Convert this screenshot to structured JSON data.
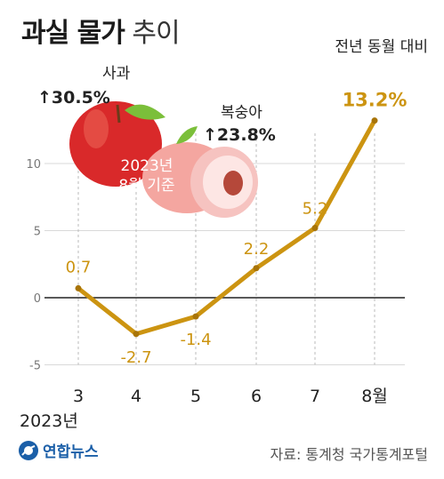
{
  "header": {
    "title_bold": "과실 물가",
    "title_light": "추이",
    "basis": "전년 동월 대비"
  },
  "footer": {
    "source": "자료: 통계청 국가통계포털",
    "agency": "연합뉴스"
  },
  "illustration": {
    "apple": {
      "name": "사과",
      "change": "↑30.5%"
    },
    "peach": {
      "name": "복숭아",
      "change": "↑23.8%"
    },
    "reference": [
      "2023년",
      "8월 기준"
    ]
  },
  "chart_data": {
    "type": "line",
    "categories": [
      "3",
      "4",
      "5",
      "6",
      "7",
      "8월"
    ],
    "x_sublabel": "2023년",
    "values": [
      0.7,
      -2.7,
      -1.4,
      2.2,
      5.2,
      13.2
    ],
    "value_labels": [
      "0.7",
      "-2.7",
      "-1.4",
      "2.2",
      "5.2",
      "13.2%"
    ],
    "yticks": [
      "10",
      "5",
      "0",
      "-5"
    ],
    "ytick_values": [
      10,
      5,
      0,
      -5
    ],
    "ylim": [
      -5,
      13.2
    ],
    "grid": true,
    "colors": {
      "line": "#cc9411",
      "label": "#cc9411",
      "marker": "#a87408",
      "zero_line": "#222222",
      "grid": "#d9d9d9",
      "apple": "#d9292a",
      "peach": "#f4a6a0"
    }
  }
}
